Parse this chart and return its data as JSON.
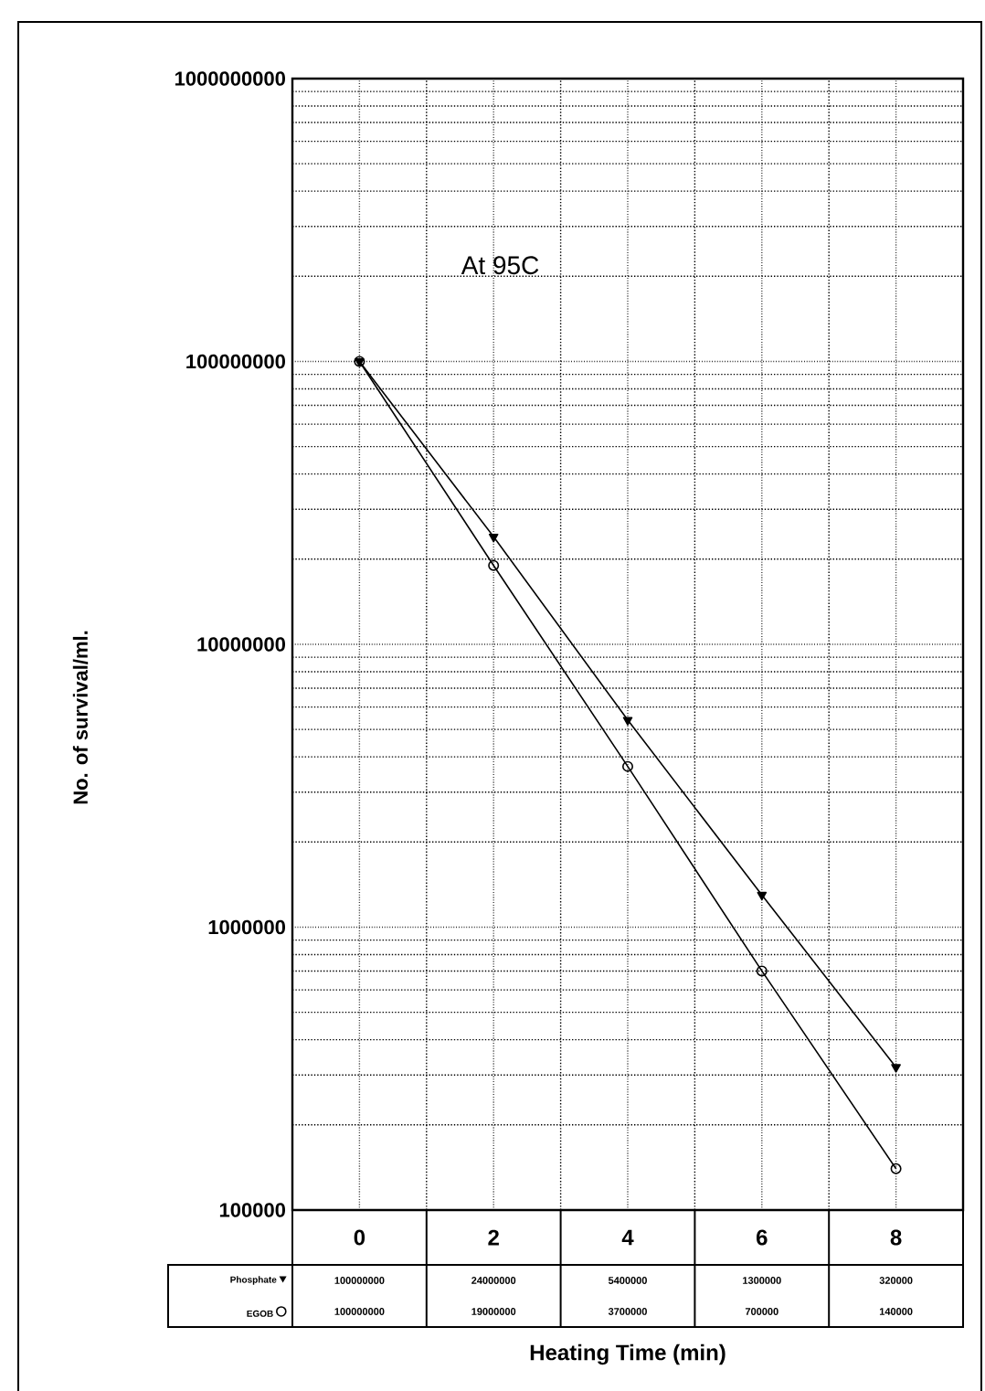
{
  "chart_data": {
    "type": "line",
    "xlabel": "Heating Time (min)",
    "ylabel": "No. of survival/ml.",
    "categories": [
      "0",
      "2",
      "4",
      "6",
      "8"
    ],
    "series": [
      {
        "name": "Phosphate",
        "color": "#000000",
        "marker": "triangle",
        "values": [
          100000000,
          24000000,
          5400000,
          1300000,
          320000
        ]
      },
      {
        "name": "EGOB",
        "color": "#000000",
        "marker": "circle",
        "values": [
          100000000,
          19000000,
          3700000,
          700000,
          140000
        ]
      }
    ],
    "log": "y",
    "ylim": [
      100000,
      1000000000
    ],
    "yticks": [
      100000,
      1000000,
      10000000,
      100000000,
      1000000000
    ],
    "grid": true,
    "legend": "bottom left",
    "data_labels": true,
    "annotations": [
      "At 95C"
    ]
  }
}
